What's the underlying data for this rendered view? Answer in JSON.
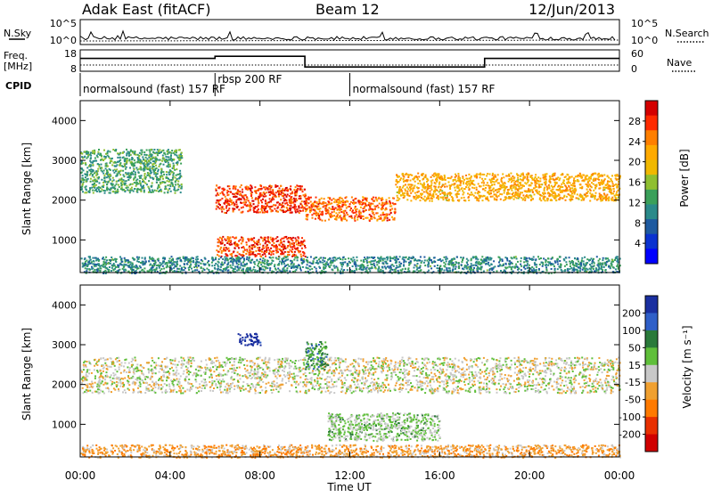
{
  "header": {
    "station": "Adak East (fitACF)",
    "beam": "Beam 12",
    "date": "12/Jun/2013"
  },
  "noise_panel": {
    "left_label": "N.Sky",
    "right_label": "N.Search",
    "left_ticks": [
      "10^5",
      "10^0"
    ],
    "right_ticks": [
      "10^5",
      "10^0"
    ]
  },
  "freq_panel": {
    "left_label_1": "Freq.",
    "left_label_2": "[MHz]",
    "left_ticks": [
      "18",
      "8"
    ],
    "right_label": "Nave",
    "right_ticks": [
      "60",
      "0"
    ],
    "freq_steps": [
      {
        "t0": 0,
        "t1": 6,
        "mhz": 14
      },
      {
        "t0": 6,
        "t1": 10,
        "mhz": 15
      },
      {
        "t0": 10,
        "t1": 18,
        "mhz": 10
      },
      {
        "t0": 18,
        "t1": 24,
        "mhz": 14
      }
    ]
  },
  "cpid": {
    "label": "CPID",
    "programs": [
      {
        "name": "normalsound (fast) 157 RF",
        "start": 0
      },
      {
        "name": "rbsp 200 RF",
        "start": 6
      },
      {
        "name": "normalsound (fast) 157 RF",
        "start": 12
      }
    ]
  },
  "power_panel": {
    "ylabel": "Slant Range [km]",
    "yticks": [
      1000,
      2000,
      3000,
      4000
    ],
    "colorbar_label": "Power [dB]",
    "colorbar_ticks": [
      "28",
      "24",
      "20",
      "16",
      "12",
      "8",
      "4"
    ],
    "colors": [
      "#d40000",
      "#ff2a00",
      "#ff7f00",
      "#ffaa00",
      "#f0b800",
      "#8fbf30",
      "#3aa05a",
      "#2a8a8a",
      "#1e5aa0",
      "#0a32d0",
      "#0000ff"
    ]
  },
  "velocity_panel": {
    "ylabel": "Slant Range [km]",
    "yticks": [
      1000,
      2000,
      3000,
      4000
    ],
    "colorbar_label": "Velocity [m s⁻¹]",
    "colorbar_ticks": [
      "200",
      "100",
      "50",
      "15",
      "-15",
      "-50",
      "-100",
      "-200"
    ],
    "colors": [
      "#1a2fa0",
      "#2f5fc8",
      "#2a7a3a",
      "#5fbf3a",
      "#c8c8c8",
      "#f0a030",
      "#ff7a00",
      "#e83000",
      "#d00000"
    ]
  },
  "x_axis": {
    "label": "Time UT",
    "ticks": [
      "00:00",
      "04:00",
      "08:00",
      "12:00",
      "16:00",
      "20:00",
      "00:00"
    ]
  },
  "chart_data": {
    "type": "heatmap",
    "title": "Adak East (fitACF)",
    "subtitle": "Beam 12 — 12/Jun/2013",
    "xlabel": "Time UT",
    "ylabel": "Slant Range [km]",
    "x_range_hours": [
      0,
      24
    ],
    "y_range_km": [
      180,
      4500
    ],
    "panels": [
      {
        "name": "Power",
        "unit": "dB",
        "color_range": [
          0,
          30
        ],
        "features": [
          {
            "t": [
              0,
              4.5
            ],
            "range_km": [
              2200,
              3300
            ],
            "value": 12
          },
          {
            "t": [
              6,
              10
            ],
            "range_km": [
              1700,
              2400
            ],
            "value": 26
          },
          {
            "t": [
              6,
              10
            ],
            "range_km": [
              600,
              1100
            ],
            "value": 26
          },
          {
            "t": [
              10,
              14
            ],
            "range_km": [
              1500,
              2100
            ],
            "value": 24
          },
          {
            "t": [
              14,
              24
            ],
            "range_km": [
              2000,
              2700
            ],
            "value": 20
          },
          {
            "t": [
              0,
              24
            ],
            "range_km": [
              180,
              600
            ],
            "value": 10
          }
        ]
      },
      {
        "name": "Velocity",
        "unit": "m s^-1",
        "color_range": [
          -200,
          200
        ],
        "features": [
          {
            "t": [
              0,
              24
            ],
            "range_km": [
              1800,
              2700
            ],
            "value": 0
          },
          {
            "t": [
              7,
              8
            ],
            "range_km": [
              3000,
              3300
            ],
            "value": 200
          },
          {
            "t": [
              10,
              11
            ],
            "range_km": [
              2400,
              3100
            ],
            "value": 80
          },
          {
            "t": [
              11,
              16
            ],
            "range_km": [
              600,
              1300
            ],
            "value": 30
          },
          {
            "t": [
              0,
              24
            ],
            "range_km": [
              180,
              500
            ],
            "value": -50
          }
        ]
      }
    ]
  }
}
